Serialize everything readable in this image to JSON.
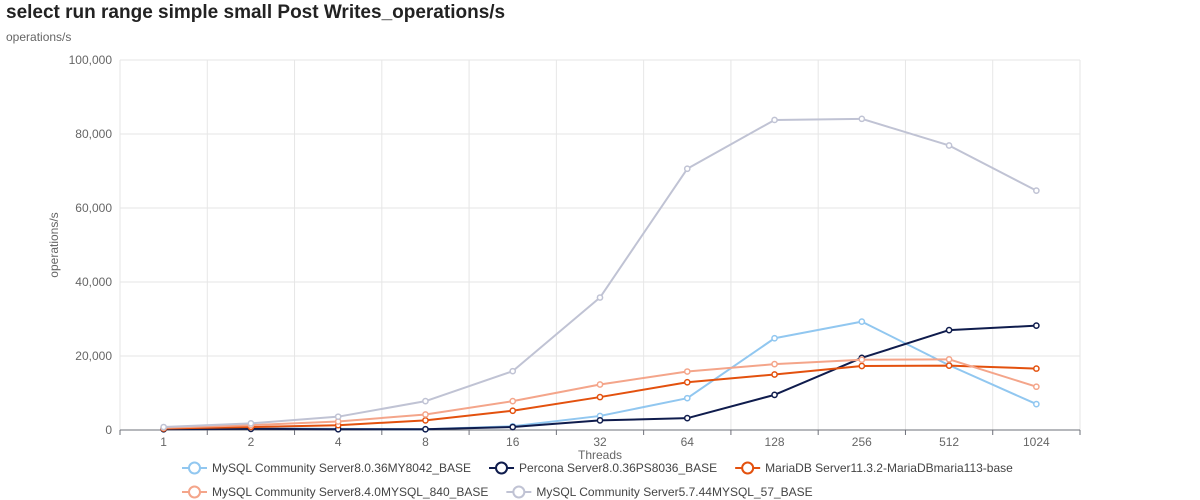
{
  "page": {
    "title": "select run range simple small Post Writes_operations/s",
    "subtitle": "operations/s"
  },
  "chart_data": {
    "type": "line",
    "title": "select run range simple small Post Writes_operations/s",
    "subtitle": "operations/s",
    "xlabel": "Threads",
    "ylabel": "operations/s",
    "categories": [
      "1",
      "2",
      "4",
      "8",
      "16",
      "32",
      "64",
      "128",
      "256",
      "512",
      "1024"
    ],
    "ylim": [
      0,
      100000
    ],
    "yticks": [
      0,
      20000,
      40000,
      60000,
      80000,
      100000
    ],
    "ytick_labels": [
      "0",
      "20,000",
      "40,000",
      "60,000",
      "80,000",
      "100,000"
    ],
    "grid": true,
    "legend_position": "bottom",
    "series": [
      {
        "name": "MySQL Community Server8.0.36MY8042_BASE",
        "color": "#91c7f0",
        "values": [
          300,
          500,
          300,
          200,
          1000,
          3800,
          8600,
          24800,
          29300,
          17500,
          7000
        ]
      },
      {
        "name": "Percona Server8.0.36PS8036_BASE",
        "color": "#0f1c4d",
        "values": [
          200,
          300,
          200,
          200,
          800,
          2600,
          3200,
          9500,
          19500,
          27000,
          28200
        ]
      },
      {
        "name": "MariaDB Server11.3.2-MariaDBmaria113-base",
        "color": "#e3510e",
        "values": [
          400,
          800,
          1300,
          2600,
          5200,
          8900,
          12900,
          15000,
          17300,
          17400,
          16600
        ]
      },
      {
        "name": "MySQL Community Server8.4.0MYSQL_840_BASE",
        "color": "#f4a58a",
        "values": [
          600,
          1300,
          2300,
          4200,
          7800,
          12300,
          15800,
          17800,
          19000,
          19100,
          11700
        ]
      },
      {
        "name": "MySQL Community Server5.7.44MYSQL_57_BASE",
        "color": "#c0c3d4",
        "values": [
          800,
          1800,
          3600,
          7800,
          15900,
          35800,
          70600,
          83800,
          84100,
          76900,
          64700
        ]
      }
    ]
  }
}
